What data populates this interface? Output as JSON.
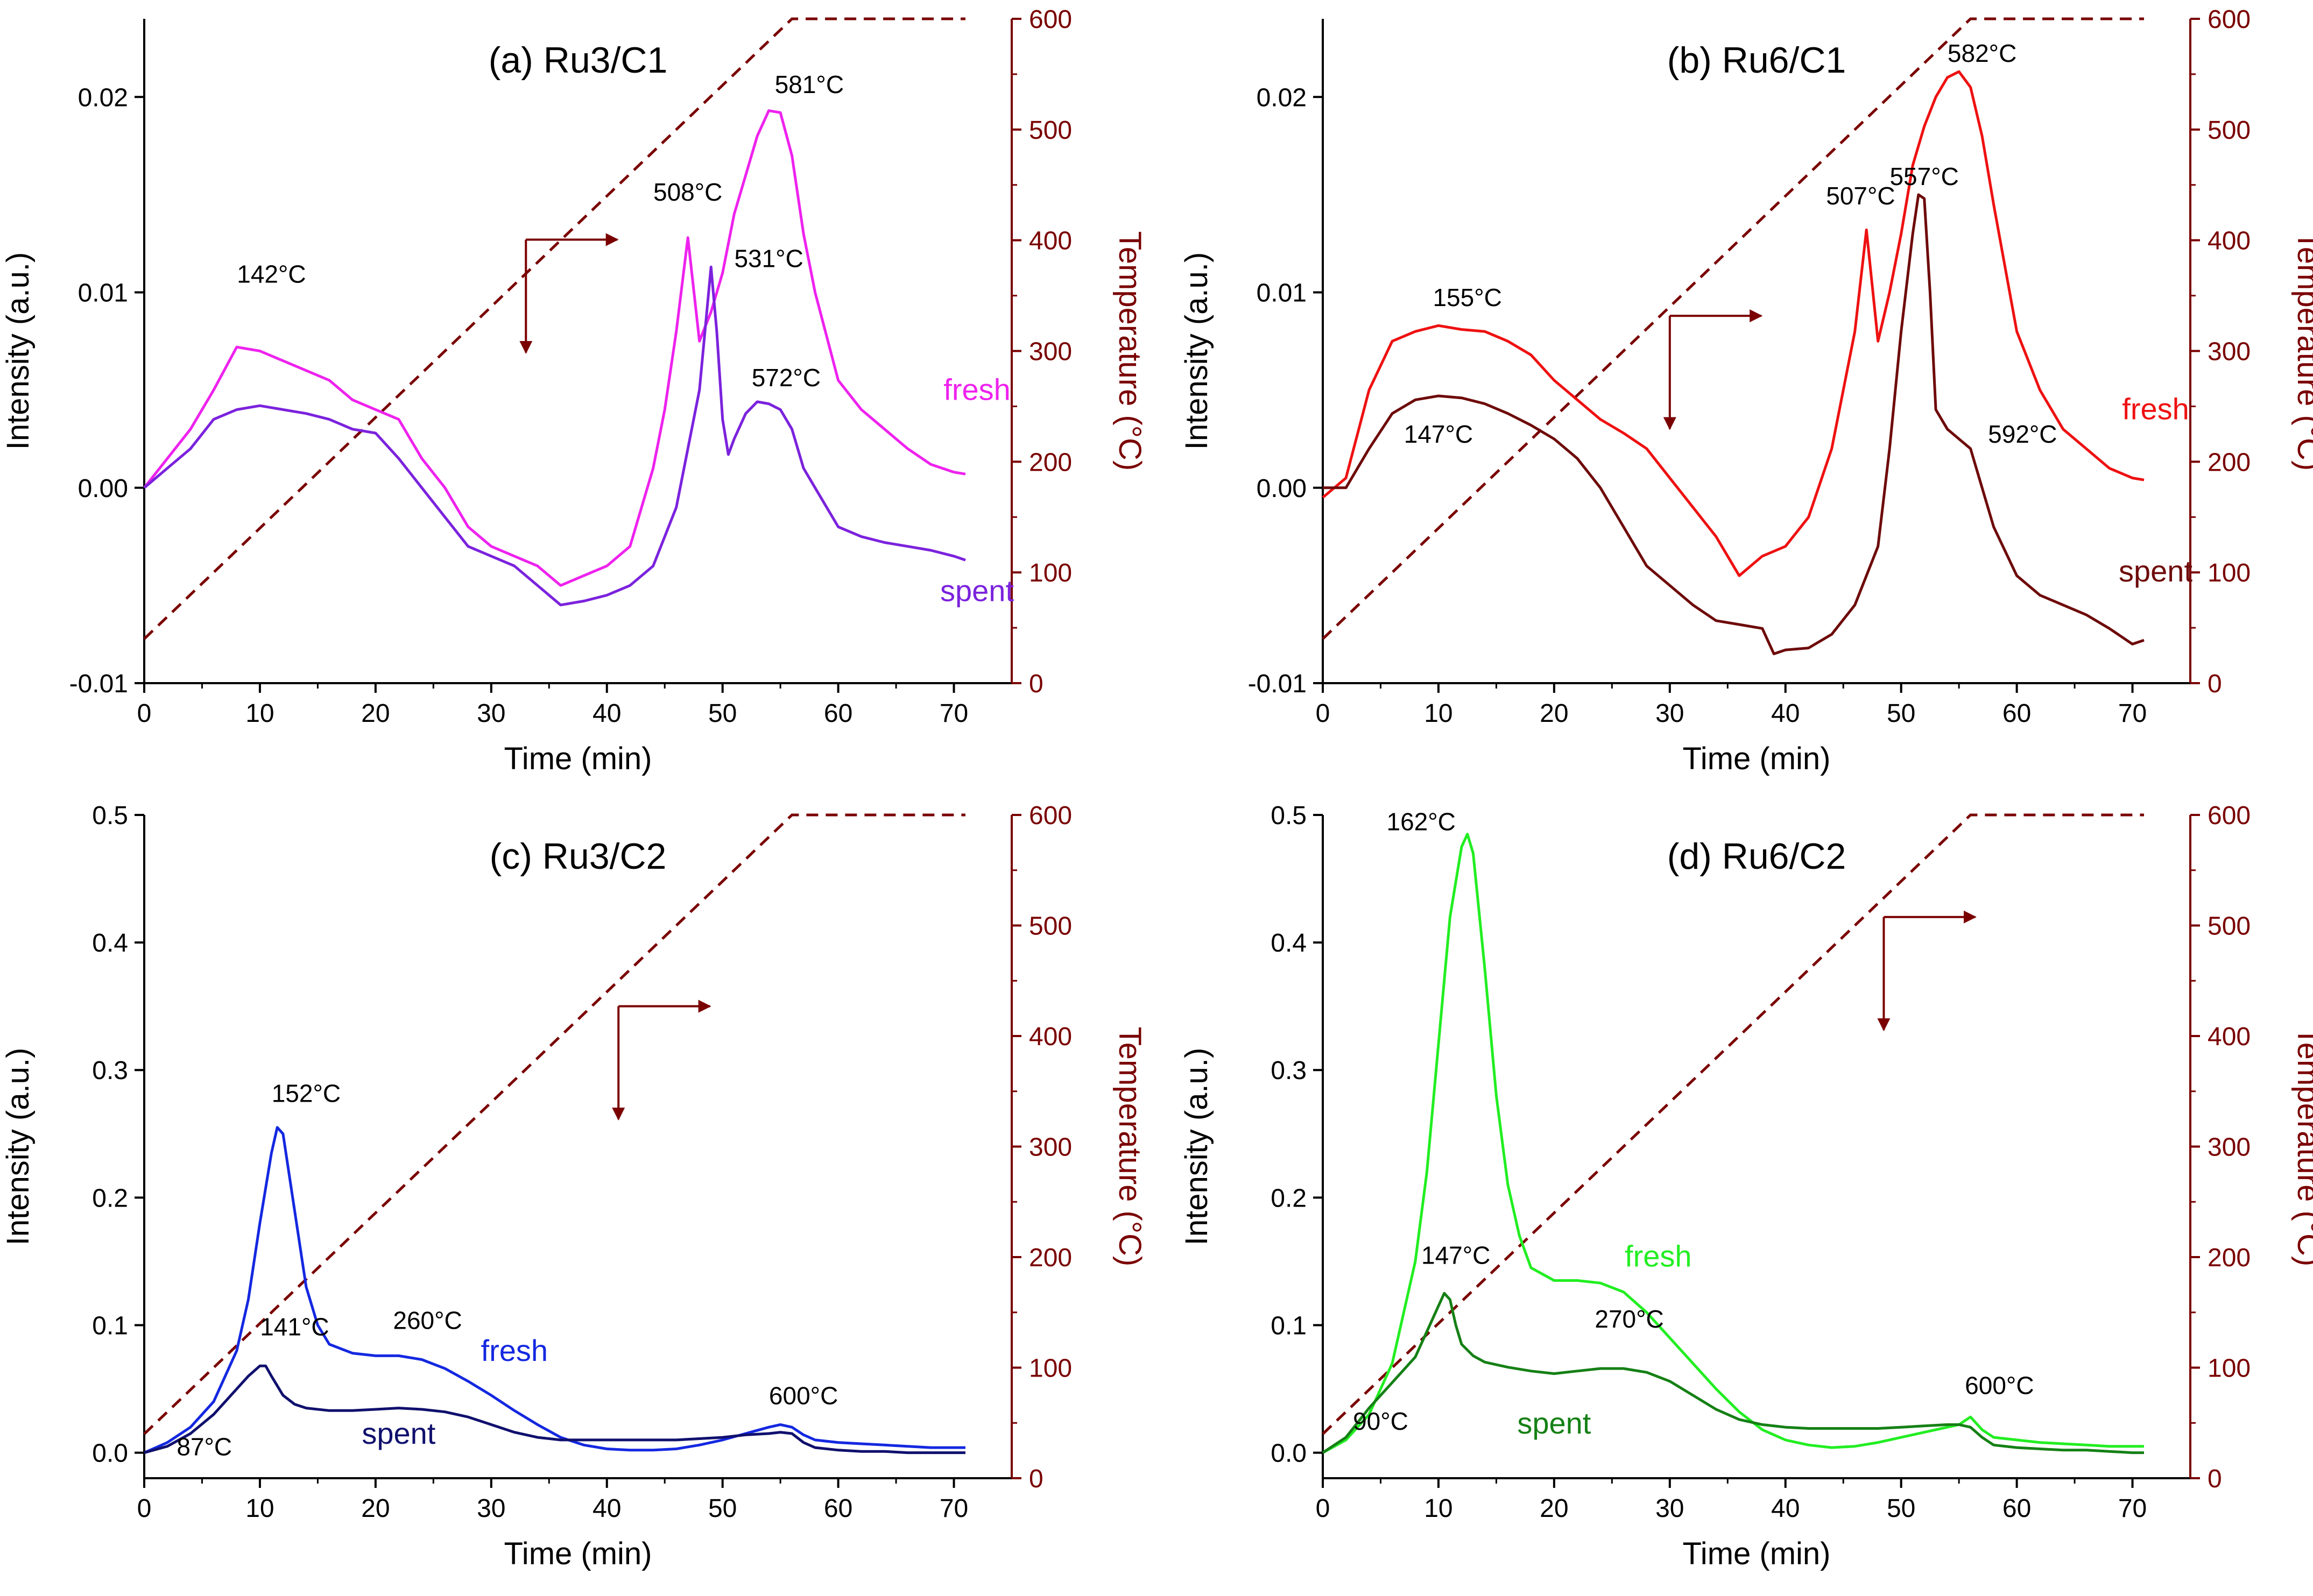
{
  "chart_data": [
    {
      "type": "line",
      "title": "(a) Ru3/C1",
      "xlabel": "Time (min)",
      "ylabel": "Intensity (a.u.)",
      "y2label": "Temperature (°C)",
      "xlim": [
        0,
        75
      ],
      "ylim": [
        -0.01,
        0.024
      ],
      "y2lim": [
        0,
        600
      ],
      "xticks": [
        0,
        10,
        20,
        30,
        40,
        50,
        60,
        70
      ],
      "xtick_labels": [
        "0",
        "10",
        "20",
        "30",
        "40",
        "50",
        "60",
        "70"
      ],
      "yticks": [
        -0.01,
        0.0,
        0.01,
        0.02
      ],
      "ytick_labels": [
        "-0.01",
        "0.00",
        "0.01",
        "0.02"
      ],
      "y2ticks": [
        0,
        100,
        200,
        300,
        400,
        500,
        600
      ],
      "y2tick_labels": [
        "0",
        "100",
        "200",
        "300",
        "400",
        "500",
        "600"
      ],
      "series": [
        {
          "name": "fresh",
          "color": "#ee22ee",
          "x": [
            0,
            2,
            4,
            6,
            8,
            10,
            12,
            14,
            16,
            18,
            20,
            22,
            24,
            26,
            28,
            30,
            32,
            34,
            36,
            38,
            40,
            42,
            44,
            45,
            46,
            47,
            48,
            49,
            50,
            51,
            52,
            53,
            54,
            55,
            56,
            57,
            58,
            60,
            62,
            64,
            66,
            68,
            70,
            71
          ],
          "values": [
            0.0,
            0.0015,
            0.003,
            0.005,
            0.0072,
            0.007,
            0.0065,
            0.006,
            0.0055,
            0.0045,
            0.004,
            0.0035,
            0.0015,
            0.0,
            -0.002,
            -0.003,
            -0.0035,
            -0.004,
            -0.005,
            -0.0045,
            -0.004,
            -0.003,
            0.001,
            0.004,
            0.008,
            0.0128,
            0.0075,
            0.009,
            0.011,
            0.014,
            0.016,
            0.018,
            0.0193,
            0.0192,
            0.017,
            0.013,
            0.01,
            0.0055,
            0.004,
            0.003,
            0.002,
            0.0012,
            0.0008,
            0.0007
          ]
        },
        {
          "name": "spent",
          "color": "#7b22dd",
          "x": [
            0,
            2,
            4,
            6,
            8,
            10,
            12,
            14,
            16,
            18,
            20,
            22,
            24,
            26,
            28,
            30,
            32,
            34,
            36,
            38,
            40,
            42,
            44,
            46,
            48,
            49,
            49.5,
            50,
            50.5,
            51,
            52,
            53,
            54,
            55,
            56,
            57,
            58,
            60,
            62,
            64,
            66,
            68,
            70,
            71
          ],
          "values": [
            0.0,
            0.001,
            0.002,
            0.0035,
            0.004,
            0.0042,
            0.004,
            0.0038,
            0.0035,
            0.003,
            0.0028,
            0.0015,
            0.0,
            -0.0015,
            -0.003,
            -0.0035,
            -0.004,
            -0.005,
            -0.006,
            -0.0058,
            -0.0055,
            -0.005,
            -0.004,
            -0.001,
            0.005,
            0.0113,
            0.008,
            0.0035,
            0.0017,
            0.0025,
            0.0038,
            0.0044,
            0.0043,
            0.004,
            0.003,
            0.001,
            0.0,
            -0.002,
            -0.0025,
            -0.0028,
            -0.003,
            -0.0032,
            -0.0035,
            -0.0037
          ]
        }
      ],
      "temperature": {
        "name": "Temperature",
        "color": "#7a0000",
        "x": [
          0,
          56,
          71
        ],
        "values": [
          40,
          600,
          600
        ]
      },
      "annotations": [
        "142°C",
        "508°C",
        "531°C",
        "581°C",
        "572°C"
      ]
    },
    {
      "type": "line",
      "title": "(b) Ru6/C1",
      "xlabel": "Time (min)",
      "ylabel": "Intensity (a.u.)",
      "y2label": "Temperature (°C)",
      "xlim": [
        0,
        75
      ],
      "ylim": [
        -0.01,
        0.024
      ],
      "y2lim": [
        0,
        600
      ],
      "xticks": [
        0,
        10,
        20,
        30,
        40,
        50,
        60,
        70
      ],
      "xtick_labels": [
        "0",
        "10",
        "20",
        "30",
        "40",
        "50",
        "60",
        "70"
      ],
      "yticks": [
        -0.01,
        0.0,
        0.01,
        0.02
      ],
      "ytick_labels": [
        "-0.01",
        "0.00",
        "0.01",
        "0.02"
      ],
      "y2ticks": [
        0,
        100,
        200,
        300,
        400,
        500,
        600
      ],
      "y2tick_labels": [
        "0",
        "100",
        "200",
        "300",
        "400",
        "500",
        "600"
      ],
      "series": [
        {
          "name": "fresh",
          "color": "#ee1111",
          "x": [
            0,
            2,
            4,
            6,
            8,
            10,
            12,
            14,
            16,
            18,
            20,
            22,
            24,
            26,
            28,
            30,
            32,
            34,
            36,
            38,
            40,
            42,
            44,
            45,
            46,
            47,
            48,
            49,
            50,
            51,
            52,
            53,
            54,
            55,
            56,
            57,
            58,
            60,
            62,
            64,
            66,
            68,
            70,
            71
          ],
          "values": [
            -0.0005,
            0.0005,
            0.005,
            0.0075,
            0.008,
            0.0083,
            0.0081,
            0.008,
            0.0075,
            0.0068,
            0.0055,
            0.0045,
            0.0035,
            0.0028,
            0.002,
            0.0005,
            -0.001,
            -0.0025,
            -0.0045,
            -0.0035,
            -0.003,
            -0.0015,
            0.002,
            0.005,
            0.008,
            0.0132,
            0.0075,
            0.01,
            0.013,
            0.0165,
            0.0185,
            0.02,
            0.021,
            0.0213,
            0.0205,
            0.018,
            0.0145,
            0.008,
            0.005,
            0.003,
            0.002,
            0.001,
            0.0005,
            0.0004
          ]
        },
        {
          "name": "spent",
          "color": "#6e0a0a",
          "x": [
            0,
            2,
            4,
            6,
            8,
            10,
            12,
            14,
            16,
            18,
            20,
            22,
            24,
            26,
            28,
            30,
            32,
            34,
            36,
            38,
            39,
            40,
            42,
            44,
            46,
            48,
            49,
            50,
            51,
            51.5,
            52,
            52.5,
            53,
            54,
            55,
            56,
            58,
            60,
            62,
            64,
            66,
            68,
            70,
            71
          ],
          "values": [
            0.0,
            0.0,
            0.002,
            0.0038,
            0.0045,
            0.0047,
            0.0046,
            0.0043,
            0.0038,
            0.0032,
            0.0025,
            0.0015,
            0.0,
            -0.002,
            -0.004,
            -0.005,
            -0.006,
            -0.0068,
            -0.007,
            -0.0072,
            -0.0085,
            -0.0083,
            -0.0082,
            -0.0075,
            -0.006,
            -0.003,
            0.002,
            0.008,
            0.013,
            0.015,
            0.0148,
            0.01,
            0.004,
            0.003,
            0.0025,
            0.002,
            -0.002,
            -0.0045,
            -0.0055,
            -0.006,
            -0.0065,
            -0.0072,
            -0.008,
            -0.0078
          ]
        }
      ],
      "temperature": {
        "name": "Temperature",
        "color": "#7a0000",
        "x": [
          0,
          56,
          71
        ],
        "values": [
          40,
          600,
          600
        ]
      },
      "annotations": [
        "155°C",
        "147°C",
        "507°C",
        "557°C",
        "582°C",
        "592°C"
      ]
    },
    {
      "type": "line",
      "title": "(c) Ru3/C2",
      "xlabel": "Time (min)",
      "ylabel": "Intensity (a.u.)",
      "y2label": "Temperature (°C)",
      "xlim": [
        0,
        75
      ],
      "ylim": [
        -0.02,
        0.5
      ],
      "y2lim": [
        0,
        600
      ],
      "xticks": [
        0,
        10,
        20,
        30,
        40,
        50,
        60,
        70
      ],
      "xtick_labels": [
        "0",
        "10",
        "20",
        "30",
        "40",
        "50",
        "60",
        "70"
      ],
      "yticks": [
        0.0,
        0.1,
        0.2,
        0.3,
        0.4,
        0.5
      ],
      "ytick_labels": [
        "0.0",
        "0.1",
        "0.2",
        "0.3",
        "0.4",
        "0.5"
      ],
      "y2ticks": [
        0,
        100,
        200,
        300,
        400,
        500,
        600
      ],
      "y2tick_labels": [
        "0",
        "100",
        "200",
        "300",
        "400",
        "500",
        "600"
      ],
      "series": [
        {
          "name": "fresh",
          "color": "#1428e0",
          "x": [
            0,
            2,
            4,
            6,
            8,
            9,
            10,
            11,
            11.5,
            12,
            13,
            14,
            15,
            16,
            18,
            20,
            22,
            24,
            26,
            28,
            30,
            32,
            34,
            36,
            38,
            40,
            42,
            44,
            46,
            48,
            50,
            52,
            54,
            55,
            56,
            57,
            58,
            60,
            62,
            64,
            66,
            68,
            70,
            71
          ],
          "values": [
            0.0,
            0.008,
            0.02,
            0.04,
            0.08,
            0.12,
            0.18,
            0.235,
            0.255,
            0.25,
            0.19,
            0.13,
            0.1,
            0.085,
            0.078,
            0.076,
            0.076,
            0.073,
            0.066,
            0.056,
            0.045,
            0.033,
            0.022,
            0.012,
            0.006,
            0.003,
            0.002,
            0.002,
            0.003,
            0.006,
            0.01,
            0.015,
            0.02,
            0.022,
            0.02,
            0.014,
            0.01,
            0.008,
            0.007,
            0.006,
            0.005,
            0.004,
            0.004,
            0.004
          ]
        },
        {
          "name": "spent",
          "color": "#10106e",
          "x": [
            0,
            2,
            4,
            6,
            8,
            9,
            10,
            10.5,
            11,
            12,
            13,
            14,
            16,
            18,
            20,
            22,
            24,
            26,
            28,
            30,
            32,
            34,
            36,
            38,
            40,
            42,
            44,
            46,
            48,
            50,
            52,
            54,
            55,
            56,
            57,
            58,
            60,
            62,
            64,
            66,
            68,
            70,
            71
          ],
          "values": [
            0.0,
            0.005,
            0.015,
            0.03,
            0.05,
            0.06,
            0.068,
            0.068,
            0.06,
            0.045,
            0.038,
            0.035,
            0.033,
            0.033,
            0.034,
            0.035,
            0.034,
            0.032,
            0.028,
            0.022,
            0.016,
            0.012,
            0.01,
            0.01,
            0.01,
            0.01,
            0.01,
            0.01,
            0.011,
            0.012,
            0.014,
            0.015,
            0.016,
            0.015,
            0.008,
            0.004,
            0.002,
            0.001,
            0.001,
            0.0,
            0.0,
            0.0,
            0.0
          ]
        }
      ],
      "temperature": {
        "name": "Temperature",
        "color": "#7a0000",
        "x": [
          0,
          56,
          71
        ],
        "values": [
          40,
          600,
          600
        ]
      },
      "annotations": [
        "152°C",
        "141°C",
        "87°C",
        "260°C",
        "600°C"
      ]
    },
    {
      "type": "line",
      "title": "(d) Ru6/C2",
      "xlabel": "Time (min)",
      "ylabel": "Intensity (a.u.)",
      "y2label": "Temperature (°C)",
      "xlim": [
        0,
        75
      ],
      "ylim": [
        -0.02,
        0.5
      ],
      "y2lim": [
        0,
        600
      ],
      "xticks": [
        0,
        10,
        20,
        30,
        40,
        50,
        60,
        70
      ],
      "xtick_labels": [
        "0",
        "10",
        "20",
        "30",
        "40",
        "50",
        "60",
        "70"
      ],
      "yticks": [
        0.0,
        0.1,
        0.2,
        0.3,
        0.4,
        0.5
      ],
      "ytick_labels": [
        "0.0",
        "0.1",
        "0.2",
        "0.3",
        "0.4",
        "0.5"
      ],
      "y2ticks": [
        0,
        100,
        200,
        300,
        400,
        500,
        600
      ],
      "y2tick_labels": [
        "0",
        "100",
        "200",
        "300",
        "400",
        "500",
        "600"
      ],
      "series": [
        {
          "name": "fresh",
          "color": "#22ee22",
          "x": [
            0,
            2,
            4,
            6,
            8,
            9,
            10,
            11,
            12,
            12.5,
            13,
            14,
            15,
            16,
            17,
            18,
            20,
            22,
            24,
            26,
            28,
            30,
            32,
            34,
            36,
            38,
            40,
            42,
            44,
            46,
            48,
            50,
            52,
            54,
            55,
            56,
            57,
            58,
            60,
            62,
            64,
            66,
            68,
            70,
            71
          ],
          "values": [
            0.0,
            0.01,
            0.03,
            0.07,
            0.15,
            0.22,
            0.32,
            0.42,
            0.475,
            0.485,
            0.47,
            0.38,
            0.28,
            0.21,
            0.17,
            0.145,
            0.135,
            0.135,
            0.133,
            0.126,
            0.11,
            0.09,
            0.07,
            0.05,
            0.032,
            0.018,
            0.01,
            0.006,
            0.004,
            0.005,
            0.008,
            0.012,
            0.016,
            0.02,
            0.022,
            0.028,
            0.018,
            0.012,
            0.01,
            0.008,
            0.007,
            0.006,
            0.005,
            0.005,
            0.005
          ]
        },
        {
          "name": "spent",
          "color": "#158015",
          "x": [
            0,
            2,
            4,
            6,
            8,
            9,
            10,
            10.5,
            11,
            11.5,
            12,
            13,
            14,
            16,
            18,
            20,
            22,
            24,
            26,
            28,
            30,
            32,
            34,
            36,
            38,
            40,
            42,
            44,
            46,
            48,
            50,
            52,
            54,
            55,
            56,
            57,
            58,
            60,
            62,
            64,
            66,
            68,
            70,
            71
          ],
          "values": [
            0.0,
            0.012,
            0.035,
            0.055,
            0.075,
            0.095,
            0.115,
            0.125,
            0.12,
            0.1,
            0.085,
            0.076,
            0.071,
            0.067,
            0.064,
            0.062,
            0.064,
            0.066,
            0.066,
            0.063,
            0.056,
            0.045,
            0.034,
            0.026,
            0.022,
            0.02,
            0.019,
            0.019,
            0.019,
            0.019,
            0.02,
            0.021,
            0.022,
            0.022,
            0.02,
            0.012,
            0.006,
            0.004,
            0.003,
            0.002,
            0.002,
            0.001,
            0.0,
            0.0
          ]
        }
      ],
      "temperature": {
        "name": "Temperature",
        "color": "#7a0000",
        "x": [
          0,
          56,
          71
        ],
        "values": [
          40,
          600,
          600
        ]
      },
      "annotations": [
        "162°C",
        "147°C",
        "90°C",
        "270°C",
        "600°C"
      ]
    }
  ]
}
